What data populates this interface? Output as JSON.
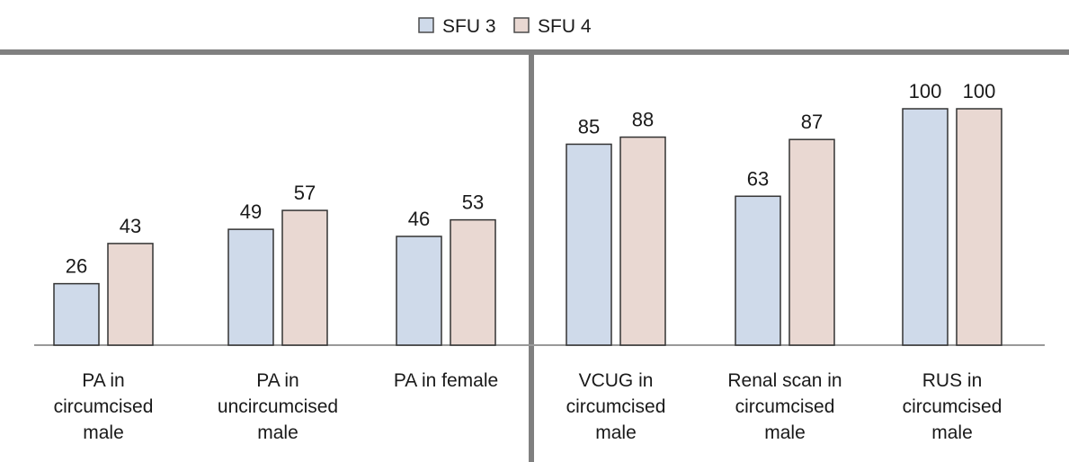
{
  "chart_data": {
    "type": "bar",
    "legend_position": "top-center",
    "grid": false,
    "ylim": [
      0,
      100
    ],
    "categories": [
      [
        "PA in",
        "circumcised",
        "male"
      ],
      [
        "PA in",
        "uncircumcised",
        "male"
      ],
      [
        "PA in female"
      ],
      [
        "VCUG in",
        "circumcised",
        "male"
      ],
      [
        "Renal scan in",
        "circumcised",
        "male"
      ],
      [
        "RUS in",
        "circumcised",
        "male"
      ]
    ],
    "series": [
      {
        "name": "SFU 3",
        "color": "#cfdaea",
        "values": [
          26,
          49,
          46,
          85,
          63,
          100
        ]
      },
      {
        "name": "SFU 4",
        "color": "#e9d8d2",
        "values": [
          43,
          57,
          53,
          88,
          87,
          100
        ]
      }
    ],
    "divider_after_category": 3
  }
}
